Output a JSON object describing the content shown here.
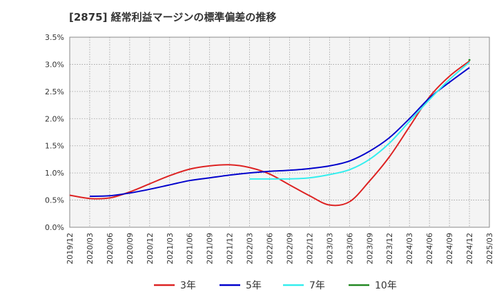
{
  "chart_data": {
    "type": "line",
    "title": "[2875]  経常利益マージンの標準偏差の推移",
    "xlabel": "",
    "ylabel": "",
    "x_ticks": [
      "2019/12",
      "2020/03",
      "2020/06",
      "2020/09",
      "2020/12",
      "2021/03",
      "2021/06",
      "2021/09",
      "2021/12",
      "2022/03",
      "2022/06",
      "2022/09",
      "2022/12",
      "2023/03",
      "2023/06",
      "2023/09",
      "2023/12",
      "2024/03",
      "2024/06",
      "2024/09",
      "2024/12",
      "2025/03"
    ],
    "y_ticks": [
      "0.0%",
      "0.5%",
      "1.0%",
      "1.5%",
      "2.0%",
      "2.5%",
      "3.0%",
      "3.5%"
    ],
    "ylim": [
      0,
      3.5
    ],
    "grid": true,
    "legend_position": "bottom",
    "series": [
      {
        "name": "3年",
        "color": "#dd2222",
        "values": [
          0.59,
          0.53,
          0.54,
          0.65,
          0.8,
          0.95,
          1.07,
          1.13,
          1.15,
          1.1,
          0.98,
          0.78,
          0.58,
          0.41,
          0.47,
          0.85,
          1.3,
          1.85,
          2.4,
          2.78,
          3.06,
          null
        ]
      },
      {
        "name": "5年",
        "color": "#0000cc",
        "values": [
          null,
          0.57,
          0.58,
          0.63,
          0.7,
          0.78,
          0.86,
          0.91,
          0.96,
          1.0,
          1.03,
          1.05,
          1.08,
          1.13,
          1.22,
          1.4,
          1.65,
          2.0,
          2.38,
          2.67,
          2.94,
          null
        ]
      },
      {
        "name": "7年",
        "color": "#33eeee",
        "values": [
          null,
          null,
          null,
          null,
          null,
          null,
          null,
          null,
          null,
          0.89,
          0.89,
          0.89,
          0.91,
          0.97,
          1.06,
          1.25,
          1.55,
          1.95,
          2.35,
          2.72,
          3.04,
          null
        ]
      },
      {
        "name": "10年",
        "color": "#228822",
        "values": [
          null,
          null,
          null,
          null,
          null,
          null,
          null,
          null,
          null,
          null,
          null,
          null,
          null,
          null,
          null,
          null,
          null,
          null,
          null,
          null,
          3.08,
          null
        ]
      }
    ]
  }
}
